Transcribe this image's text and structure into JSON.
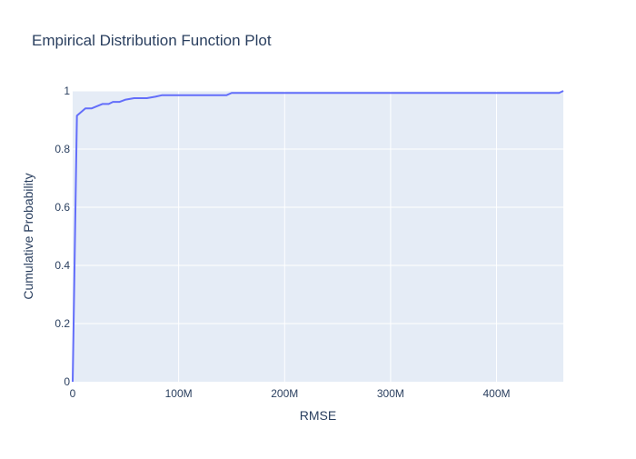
{
  "chart_data": {
    "type": "line",
    "title": "Empirical Distribution Function Plot",
    "xlabel": "RMSE",
    "ylabel": "Cumulative Probability",
    "xlim": [
      0,
      463000000
    ],
    "ylim": [
      0,
      1
    ],
    "x_ticks": [
      {
        "value": 0,
        "label": "0"
      },
      {
        "value": 100000000,
        "label": "100M"
      },
      {
        "value": 200000000,
        "label": "200M"
      },
      {
        "value": 300000000,
        "label": "300M"
      },
      {
        "value": 400000000,
        "label": "400M"
      }
    ],
    "y_ticks": [
      {
        "value": 0,
        "label": "0"
      },
      {
        "value": 0.2,
        "label": "0.2"
      },
      {
        "value": 0.4,
        "label": "0.4"
      },
      {
        "value": 0.6,
        "label": "0.6"
      },
      {
        "value": 0.8,
        "label": "0.8"
      },
      {
        "value": 1,
        "label": "1"
      }
    ],
    "grid": true,
    "series": [
      {
        "color": "#636efa",
        "x": [
          0,
          4000000,
          12000000,
          18000000,
          28000000,
          34000000,
          38000000,
          44000000,
          50000000,
          58000000,
          70000000,
          78000000,
          84000000,
          90000000,
          100000000,
          120000000,
          145000000,
          150000000,
          200000000,
          300000000,
          400000000,
          459000000,
          463000000
        ],
        "y": [
          0,
          0.915,
          0.94,
          0.94,
          0.955,
          0.955,
          0.962,
          0.962,
          0.97,
          0.975,
          0.975,
          0.98,
          0.985,
          0.985,
          0.985,
          0.985,
          0.985,
          0.993,
          0.993,
          0.993,
          0.993,
          0.993,
          1.0
        ]
      }
    ]
  },
  "colors": {
    "plot_background": "#e5ecf6",
    "grid": "#ffffff",
    "line": "#636efa",
    "text": "#2a3f5f"
  }
}
